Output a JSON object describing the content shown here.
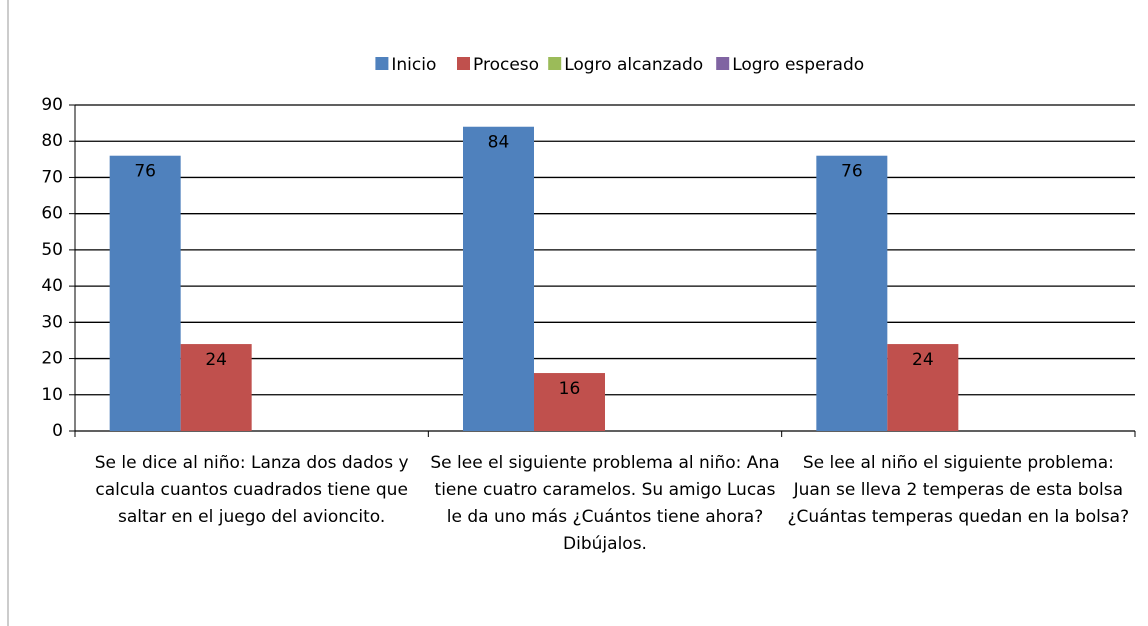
{
  "chart_data": {
    "type": "bar",
    "categories": [
      "Se le dice al niño: Lanza dos dados y calcula cuantos cuadrados tiene que saltar en el juego del avioncito.",
      "Se lee el siguiente problema al niño: Ana tiene cuatro caramelos. Su amigo Lucas le da uno más ¿Cuántos tiene ahora? Dibújalos.",
      "Se lee al niño el siguiente problema: Juan se lleva 2 temperas de esta bolsa ¿Cuántas temperas quedan en la bolsa?"
    ],
    "series": [
      {
        "name": "Inicio",
        "color": "#4f81bd",
        "values": [
          76,
          84,
          76
        ]
      },
      {
        "name": "Proceso",
        "color": "#c0504d",
        "values": [
          24,
          16,
          24
        ]
      },
      {
        "name": "Logro alcanzado",
        "color": "#9bbb59",
        "values": [
          null,
          null,
          null
        ]
      },
      {
        "name": "Logro esperado",
        "color": "#8064a2",
        "values": [
          null,
          null,
          null
        ]
      }
    ],
    "ylim": [
      0,
      90
    ],
    "yticks": [
      0,
      10,
      20,
      30,
      40,
      50,
      60,
      70,
      80,
      90
    ],
    "grid": true,
    "legend": "top"
  }
}
